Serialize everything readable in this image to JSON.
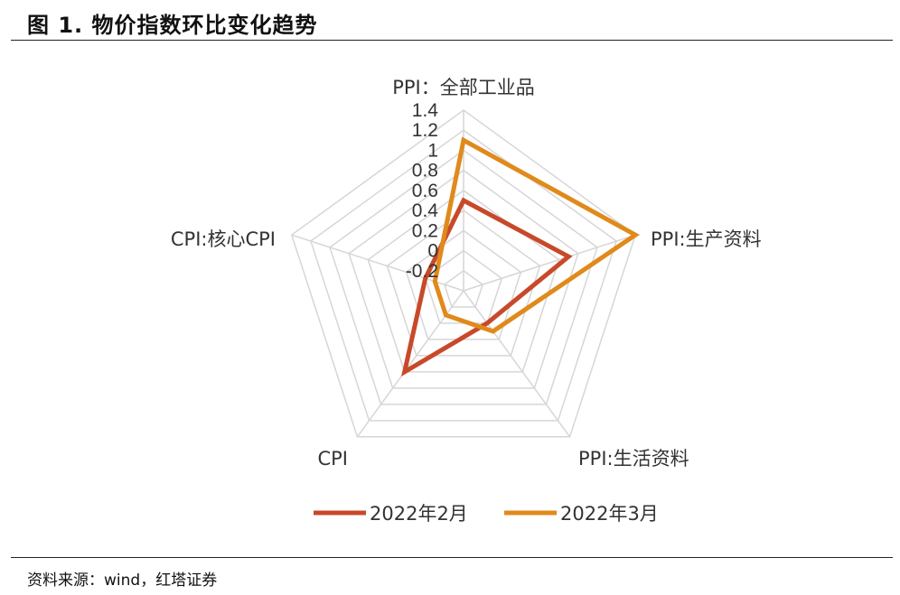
{
  "figure": {
    "title": "图 1. 物价指数环比变化趋势",
    "source": "资料来源：wind，红塔证券"
  },
  "chart_data": {
    "type": "radar",
    "axes": [
      "PPI：全部工业品",
      "PPI:生产资料",
      "PPI:生活资料",
      "CPI",
      "CPI:核心CPI"
    ],
    "ticks": [
      "-0.2",
      "0",
      "0.2",
      "0.4",
      "0.6",
      "0.8",
      "1",
      "1.2",
      "1.4"
    ],
    "range": [
      -0.4,
      1.4
    ],
    "grid": true,
    "legend_position": "bottom",
    "series": [
      {
        "name": "2022年2月",
        "color": "#c8492a",
        "values": [
          0.5,
          0.7,
          0.0,
          0.6,
          0.0
        ]
      },
      {
        "name": "2022年3月",
        "color": "#e08a1c",
        "values": [
          1.1,
          1.4,
          0.1,
          -0.1,
          -0.1
        ]
      }
    ]
  }
}
